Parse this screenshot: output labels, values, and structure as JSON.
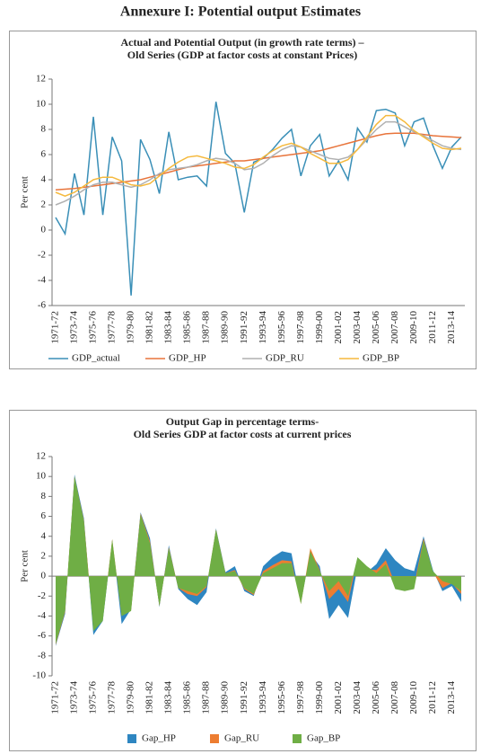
{
  "title": "Annexure I: Potential output Estimates",
  "chart_data": [
    {
      "type": "line",
      "title": [
        "Actual and Potential Output (in growth rate terms) –",
        "Old Series (GDP at factor costs at constant Prices)"
      ],
      "ylabel": "Per cent",
      "categories": [
        "1971-72",
        null,
        "1973-74",
        null,
        "1975-76",
        null,
        "1977-78",
        null,
        "1979-80",
        null,
        "1981-82",
        null,
        "1983-84",
        null,
        "1985-86",
        null,
        "1987-88",
        null,
        "1989-90",
        null,
        "1991-92",
        null,
        "1993-94",
        null,
        "1995-96",
        null,
        "1997-98",
        null,
        "1999-00",
        null,
        "2001-02",
        null,
        "2003-04",
        null,
        "2005-06",
        null,
        "2007-08",
        null,
        "2009-10",
        null,
        "2011-12",
        null,
        "2013-14",
        null
      ],
      "ylim": [
        -6,
        12
      ],
      "yticks": [
        -6,
        -4,
        -2,
        0,
        2,
        4,
        6,
        8,
        10,
        12
      ],
      "grid": false,
      "legend": "bottom",
      "series": [
        {
          "name": "GDP_actual",
          "color": "#3a8fb7",
          "values": [
            1.0,
            -0.3,
            4.5,
            1.2,
            9.0,
            1.2,
            7.4,
            5.5,
            -5.2,
            7.2,
            5.6,
            2.9,
            7.8,
            4.0,
            4.2,
            4.3,
            3.5,
            10.2,
            6.1,
            5.3,
            1.4,
            5.4,
            5.7,
            6.4,
            7.3,
            8.0,
            4.3,
            6.7,
            7.6,
            4.3,
            5.5,
            4.0,
            8.1,
            7.0,
            9.5,
            9.6,
            9.3,
            6.7,
            8.6,
            8.9,
            6.7,
            4.9,
            6.6,
            7.4
          ]
        },
        {
          "name": "GDP_HP",
          "color": "#e8743b",
          "values": [
            3.2,
            3.25,
            3.3,
            3.4,
            3.5,
            3.6,
            3.7,
            3.8,
            3.9,
            4.0,
            4.2,
            4.4,
            4.6,
            4.8,
            5.0,
            5.1,
            5.2,
            5.3,
            5.4,
            5.5,
            5.5,
            5.6,
            5.7,
            5.8,
            5.9,
            6.0,
            6.1,
            6.2,
            6.3,
            6.5,
            6.7,
            6.9,
            7.1,
            7.3,
            7.5,
            7.65,
            7.7,
            7.7,
            7.7,
            7.6,
            7.5,
            7.45,
            7.4,
            7.35
          ]
        },
        {
          "name": "GDP_RU",
          "color": "#b0b0b0",
          "values": [
            2.0,
            2.3,
            2.7,
            3.2,
            3.6,
            3.8,
            3.8,
            3.6,
            3.4,
            3.6,
            4.0,
            4.5,
            4.8,
            4.9,
            5.0,
            5.2,
            5.5,
            5.7,
            5.6,
            5.3,
            4.8,
            4.9,
            5.3,
            5.9,
            6.4,
            6.7,
            6.6,
            6.3,
            6.0,
            5.7,
            5.6,
            5.8,
            6.4,
            7.2,
            8.0,
            8.6,
            8.6,
            8.2,
            7.8,
            7.5,
            7.1,
            6.7,
            6.5,
            6.4
          ]
        },
        {
          "name": "GDP_BP",
          "color": "#f5b93d",
          "values": [
            3.0,
            2.7,
            3.0,
            3.5,
            4.0,
            4.2,
            4.2,
            3.9,
            3.6,
            3.5,
            3.7,
            4.3,
            4.9,
            5.4,
            5.8,
            5.9,
            5.7,
            5.5,
            5.3,
            5.0,
            4.9,
            5.2,
            5.8,
            6.3,
            6.7,
            6.9,
            6.6,
            6.1,
            5.7,
            5.3,
            5.3,
            5.6,
            6.4,
            7.4,
            8.4,
            9.1,
            9.1,
            8.6,
            7.9,
            7.4,
            6.9,
            6.5,
            6.4,
            6.5
          ]
        }
      ]
    },
    {
      "type": "area",
      "title": [
        "Output Gap in percentage terms-",
        "Old Series GDP at factor costs at current prices"
      ],
      "ylabel": "Per cent",
      "categories": [
        "1971-72",
        null,
        "1973-74",
        null,
        "1975-76",
        null,
        "1977-78",
        null,
        "1979-80",
        null,
        "1981-82",
        null,
        "1983-84",
        null,
        "1985-86",
        null,
        "1987-88",
        null,
        "1989-90",
        null,
        "1991-92",
        null,
        "1993-94",
        null,
        "1995-96",
        null,
        "1997-98",
        null,
        "1999-00",
        null,
        "2001-02",
        null,
        "2003-04",
        null,
        "2005-06",
        null,
        "2007-08",
        null,
        "2009-10",
        null,
        "2011-12",
        null,
        "2013-14",
        null
      ],
      "ylim": [
        -10,
        12
      ],
      "yticks": [
        -10,
        -8,
        -6,
        -4,
        -2,
        0,
        2,
        4,
        6,
        8,
        10,
        12
      ],
      "grid": false,
      "legend": "bottom",
      "series": [
        {
          "name": "Gap_HP",
          "color": "#2e86c1",
          "values": [
            -7.0,
            -3.8,
            10.2,
            5.8,
            -5.9,
            -4.5,
            3.6,
            -4.8,
            -3.3,
            6.4,
            3.8,
            -3.1,
            3.1,
            -1.3,
            -2.3,
            -2.9,
            -1.6,
            4.8,
            0.4,
            1.0,
            -1.5,
            -2.0,
            1.0,
            1.9,
            2.5,
            2.3,
            -2.6,
            2.3,
            1.0,
            -4.3,
            -2.9,
            -4.2,
            0.9,
            0.4,
            1.2,
            2.8,
            1.6,
            0.8,
            0.5,
            4.0,
            0.6,
            -1.5,
            -1.0,
            -2.6
          ]
        },
        {
          "name": "Gap_RU",
          "color": "#ed7d31",
          "values": [
            -6.9,
            -3.6,
            10.0,
            5.6,
            -5.3,
            -4.3,
            3.7,
            -4.0,
            -3.4,
            6.3,
            3.5,
            -3.0,
            2.9,
            -1.2,
            -1.8,
            -2.0,
            -1.1,
            4.7,
            0.3,
            0.6,
            -1.3,
            -1.9,
            0.5,
            1.1,
            1.6,
            1.5,
            -2.8,
            2.8,
            0.6,
            -2.3,
            -1.3,
            -2.6,
            1.8,
            0.7,
            0.6,
            1.6,
            -0.8,
            -1.2,
            -1.0,
            3.8,
            0.4,
            -1.2,
            -0.7,
            -1.8
          ]
        },
        {
          "name": "Gap_BP",
          "color": "#6fae45",
          "values": [
            -6.8,
            -3.5,
            10.0,
            5.5,
            -5.5,
            -4.5,
            3.7,
            -4.0,
            -3.5,
            6.2,
            3.3,
            -3.0,
            2.8,
            -1.2,
            -1.5,
            -1.8,
            -1.0,
            4.7,
            0.3,
            0.5,
            -1.2,
            -1.8,
            0.3,
            0.8,
            1.3,
            1.3,
            -2.8,
            2.5,
            0.5,
            -1.5,
            -0.5,
            -2.0,
            1.9,
            1.0,
            0.3,
            1.2,
            -1.3,
            -1.5,
            -1.3,
            3.6,
            0.5,
            -0.5,
            -0.8,
            -1.5
          ]
        }
      ]
    }
  ]
}
